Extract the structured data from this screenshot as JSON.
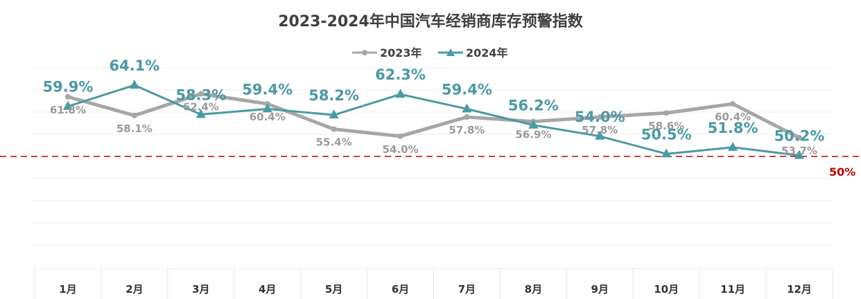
{
  "chart_data": {
    "type": "line",
    "title": "2023-2024年中国汽车经销商库存预警指数",
    "categories": [
      "1月",
      "2月",
      "3月",
      "4月",
      "5月",
      "6月",
      "7月",
      "8月",
      "9月",
      "10月",
      "11月",
      "12月"
    ],
    "series": [
      {
        "name": "2023年",
        "values": [
          61.8,
          58.1,
          62.4,
          60.4,
          55.4,
          54.0,
          57.8,
          56.9,
          57.8,
          58.6,
          60.4,
          53.7
        ],
        "labels": [
          "61.8%",
          "58.1%",
          "62.4%",
          "60.4%",
          "55.4%",
          "54.0%",
          "57.8%",
          "56.9%",
          "57.8%",
          "58.6%",
          "60.4%",
          "53.7%"
        ],
        "color": "#a6a6a6",
        "marker": "circle"
      },
      {
        "name": "2024年",
        "values": [
          59.9,
          64.1,
          58.3,
          59.4,
          58.2,
          62.3,
          59.4,
          56.2,
          54.0,
          50.5,
          51.8,
          50.2
        ],
        "labels": [
          "59.9%",
          "64.1%",
          "58.3%",
          "59.4%",
          "58.2%",
          "62.3%",
          "59.4%",
          "56.2%",
          "54.0%",
          "50.5%",
          "51.8%",
          "50.2%"
        ],
        "color": "#4a9aa3",
        "marker": "triangle"
      }
    ],
    "reference_line": {
      "value": 50,
      "label": "50%",
      "color": "#c00000",
      "style": "dashed"
    },
    "grid": true,
    "legend_position": "top"
  }
}
